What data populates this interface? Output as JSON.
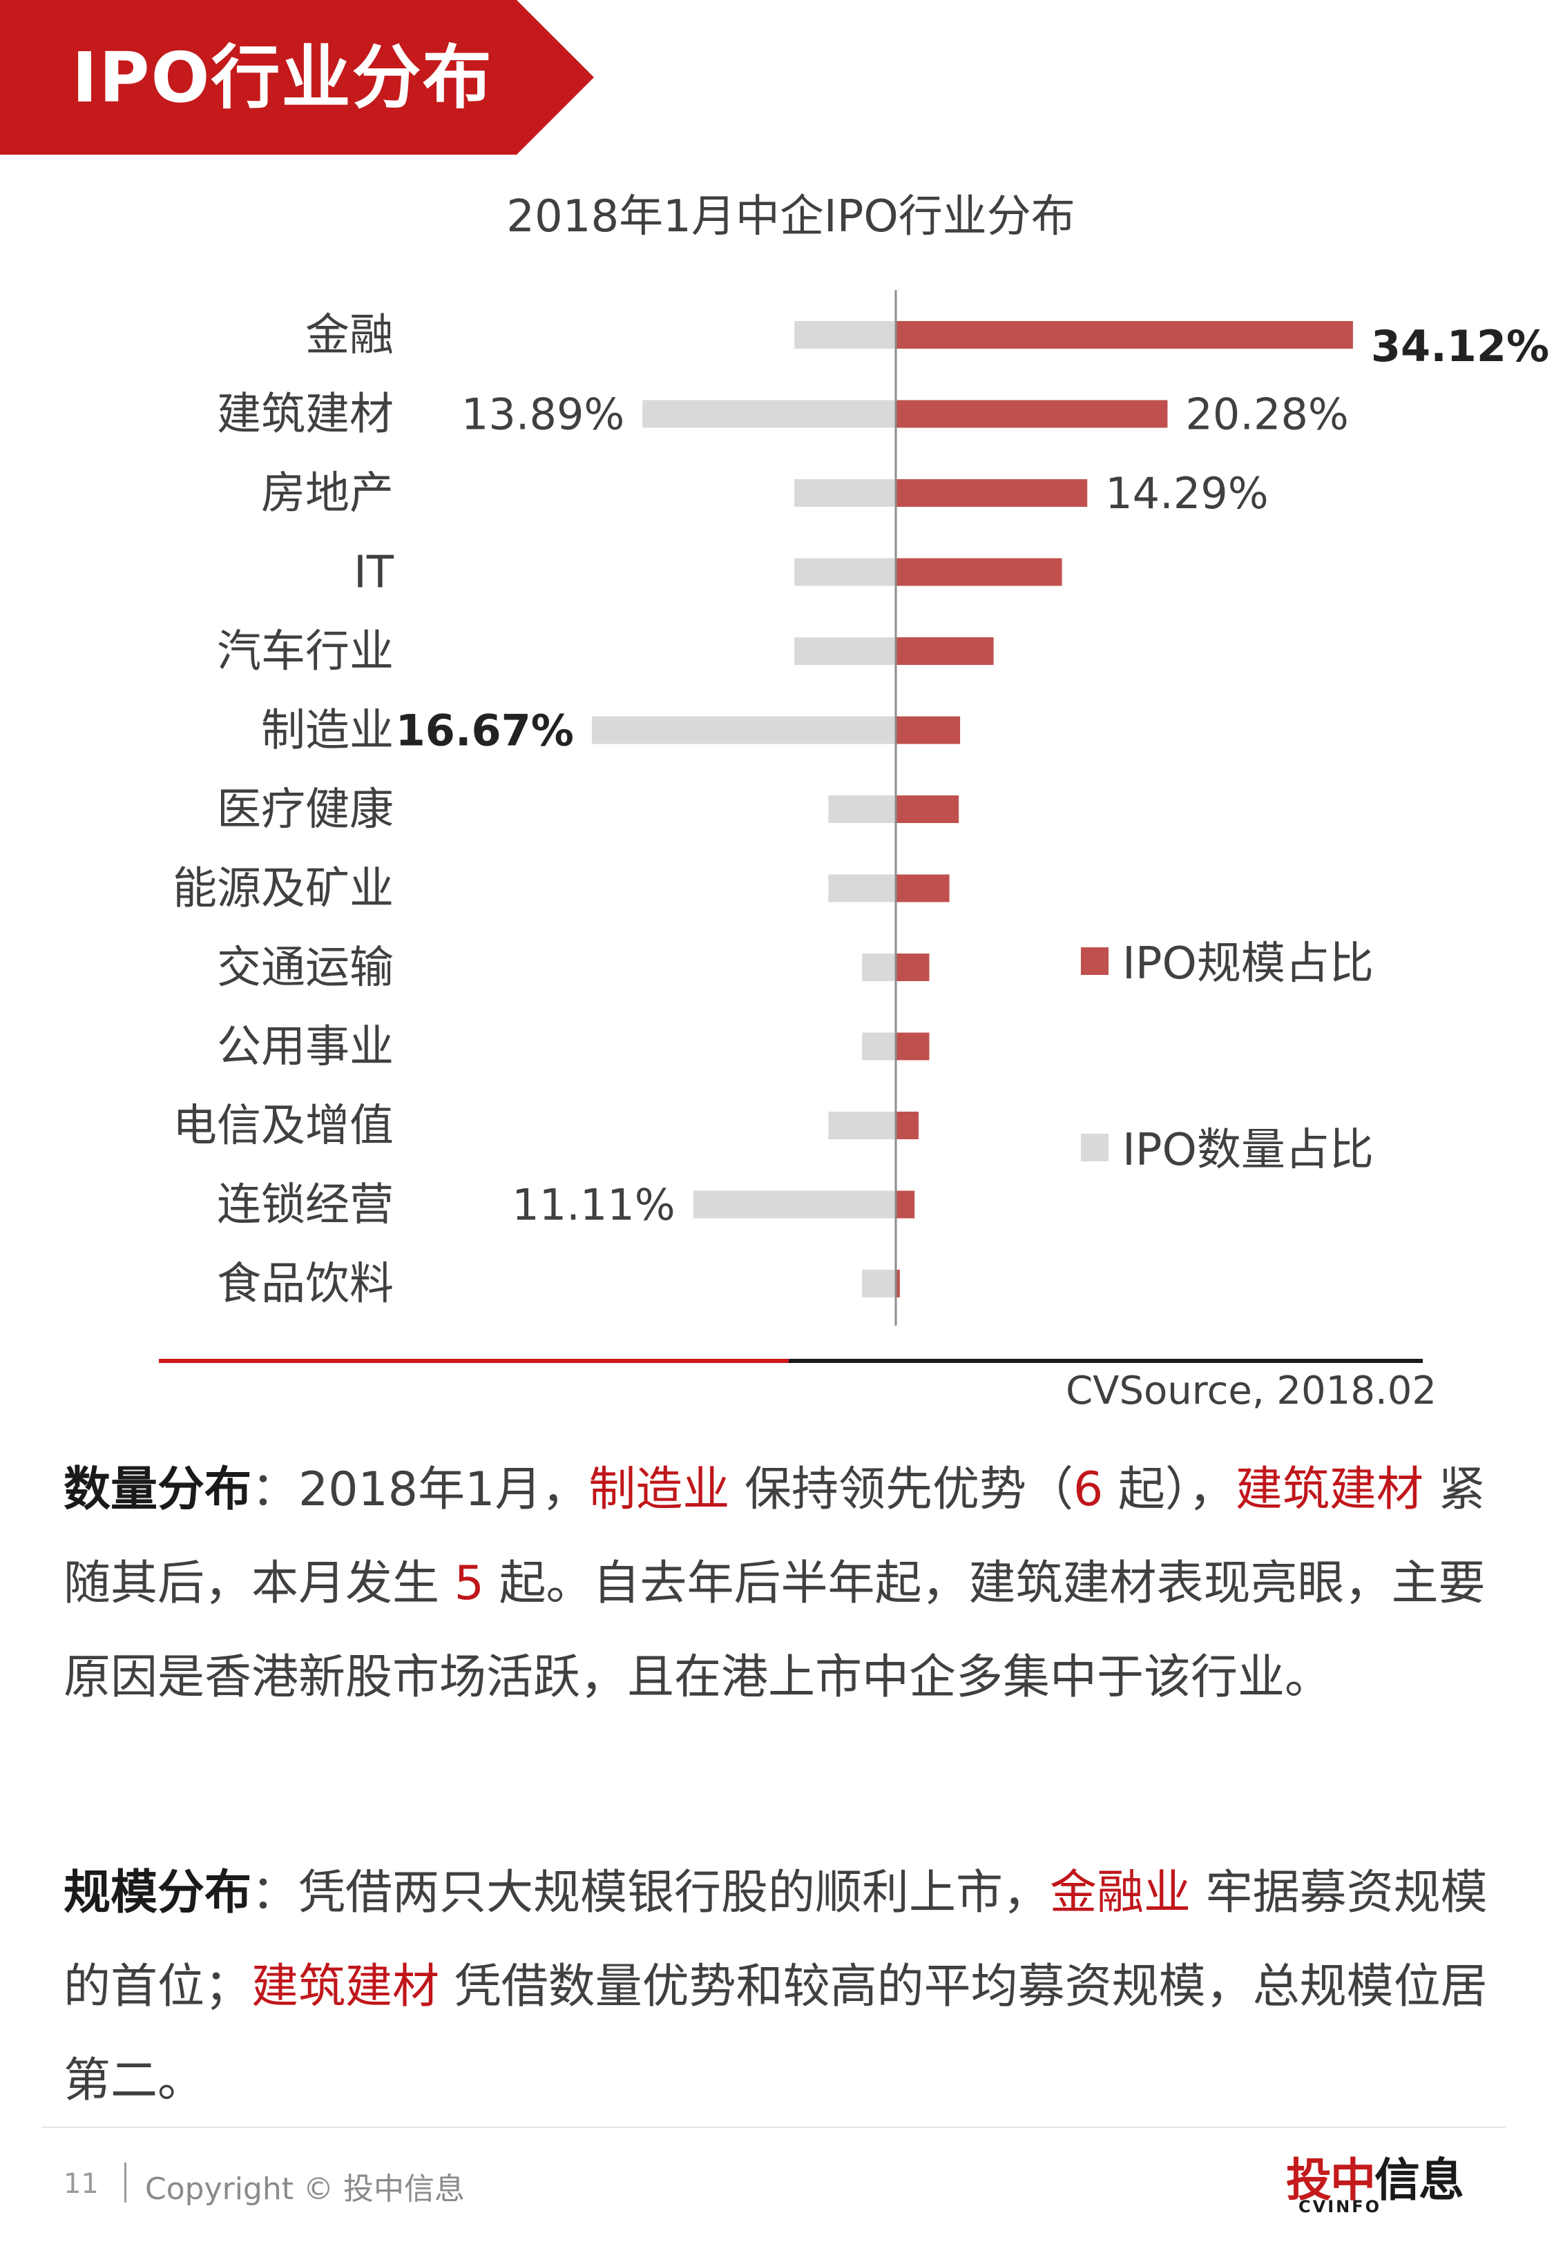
{
  "header": {
    "title": "IPO行业分布"
  },
  "chart_data": {
    "type": "bar",
    "orientation": "horizontal-diverging",
    "title": "2018年1月中企IPO行业分布",
    "categories": [
      "金融",
      "建筑建材",
      "房地产",
      "IT",
      "汽车行业",
      "制造业",
      "医疗健康",
      "能源及矿业",
      "交通运输",
      "公用事业",
      "电信及增值",
      "连锁经营",
      "食品饮料"
    ],
    "series": [
      {
        "name": "IPO规模占比",
        "color": "#c0504d",
        "direction": "right",
        "values": [
          34.12,
          20.28,
          14.29,
          12.4,
          7.3,
          4.8,
          4.7,
          4.0,
          2.5,
          2.5,
          1.7,
          1.4,
          0.3
        ],
        "labels": [
          "34.12%",
          "20.28%",
          "14.29%",
          "",
          "",
          "",
          "",
          "",
          "",
          "",
          "",
          "",
          ""
        ],
        "bold_labels": [
          true,
          false,
          false,
          false,
          false,
          false,
          false,
          false,
          false,
          false,
          false,
          false,
          false
        ]
      },
      {
        "name": "IPO数量占比",
        "color": "#d9d9d9",
        "direction": "left",
        "values": [
          5.56,
          13.89,
          5.56,
          5.56,
          5.56,
          16.67,
          3.7,
          3.7,
          1.85,
          1.85,
          3.7,
          11.11,
          1.85
        ],
        "labels": [
          "",
          "13.89%",
          "",
          "",
          "",
          "16.67%",
          "",
          "",
          "",
          "",
          "",
          "11.11%",
          ""
        ],
        "bold_labels": [
          false,
          false,
          false,
          false,
          false,
          true,
          false,
          false,
          false,
          false,
          false,
          false,
          false
        ]
      }
    ],
    "legend": {
      "position": "right",
      "items": [
        "IPO规模占比",
        "IPO数量占比"
      ]
    },
    "source": "CVSource, 2018.02"
  },
  "text": {
    "para1": {
      "lead": "数量分布",
      "t1": "：2018年1月，",
      "h1": "制造业",
      "t2": " 保持领先优势（",
      "h2": "6",
      "t3": " 起），",
      "h3": "建筑建材",
      "t4": " 紧随其后，本月发生 ",
      "h4": "5",
      "t5": " 起。自去年后半年起，建筑建材表现亮眼，主要原因是香港新股市场活跃，且在港上市中企多集中于该行业。"
    },
    "para2": {
      "lead": "规模分布",
      "t1": "：凭借两只大规模银行股的顺利上市，",
      "h1": "金融业",
      "t2": " 牢据募资规模的首位；",
      "h2": "建筑建材",
      "t3": " 凭借数量优势和较高的平均募资规模，总规模位居第二。"
    }
  },
  "footer": {
    "page_number": "11",
    "copyright": "Copyright © 投中信息",
    "logo_cn_red": "投中",
    "logo_cn_dark": "信息",
    "logo_en": "CVINFO"
  }
}
